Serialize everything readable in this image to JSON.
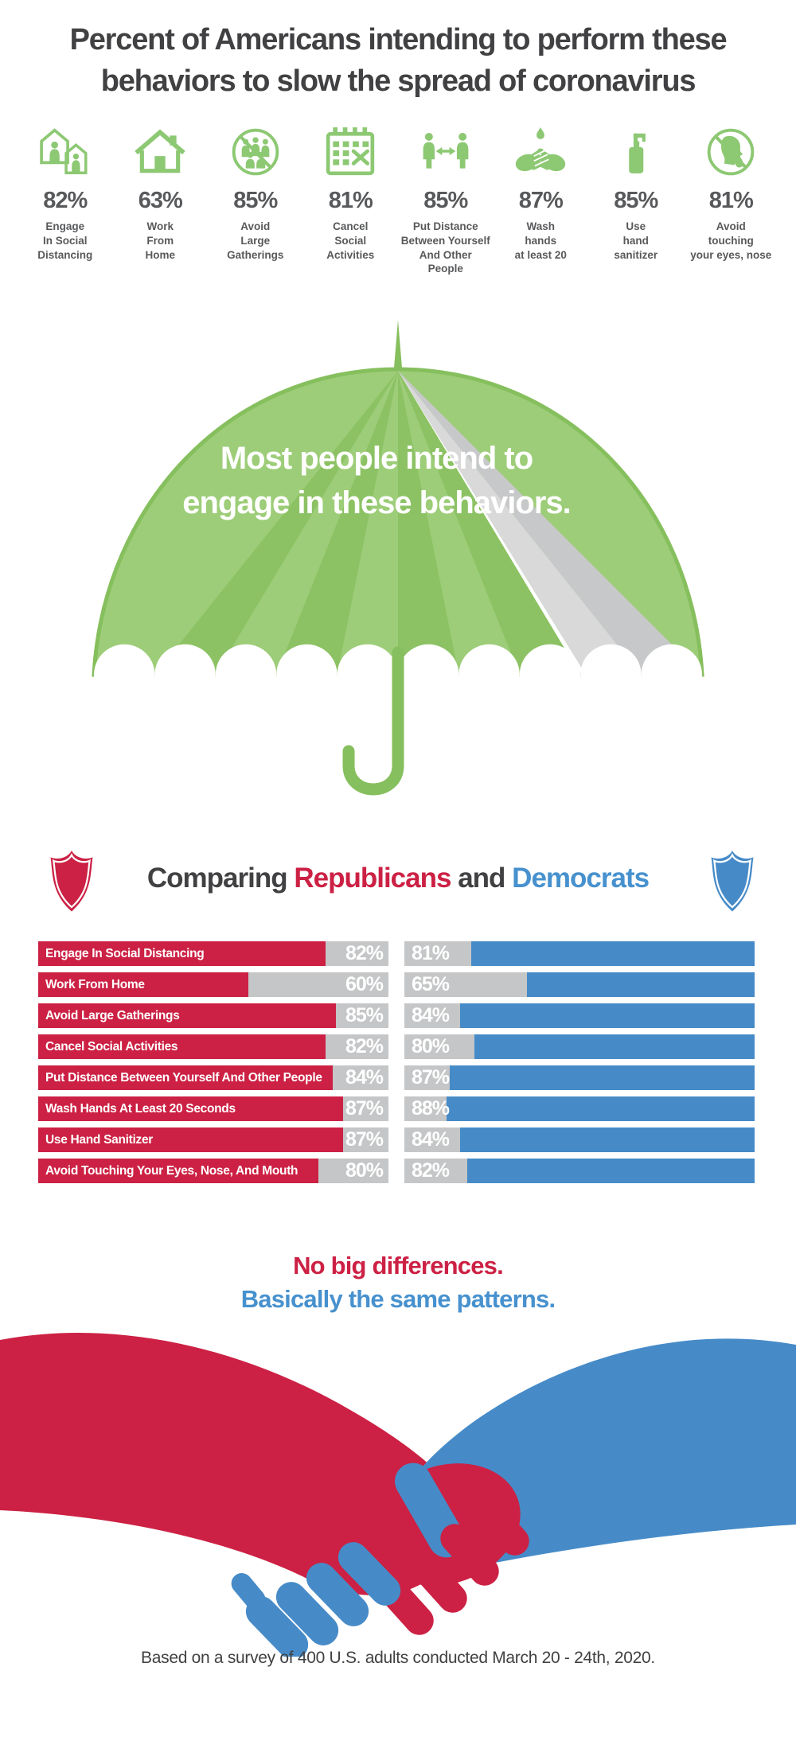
{
  "title": {
    "line1": "Percent of Americans intending to perform these",
    "line2": "behaviors to slow the spread of coronavirus"
  },
  "behaviors": [
    {
      "icon": "social-distancing-houses-icon",
      "symbol": "icon-houses",
      "pct": "82%",
      "label": "Engage\nIn Social\nDistancing"
    },
    {
      "icon": "work-from-home-icon",
      "symbol": "icon-home",
      "pct": "63%",
      "label": "Work\nFrom\nHome"
    },
    {
      "icon": "avoid-gatherings-icon",
      "symbol": "icon-crowd",
      "pct": "85%",
      "label": "Avoid\nLarge\nGatherings"
    },
    {
      "icon": "cancel-activities-icon",
      "symbol": "icon-calendar",
      "pct": "81%",
      "label": "Cancel\nSocial\nActivities"
    },
    {
      "icon": "keep-distance-icon",
      "symbol": "icon-distance",
      "pct": "85%",
      "label": "Put Distance\nBetween Yourself\nAnd Other\nPeople"
    },
    {
      "icon": "wash-hands-icon",
      "symbol": "icon-wash",
      "pct": "87%",
      "label": "Wash\nhands\nat least 20"
    },
    {
      "icon": "hand-sanitizer-icon",
      "symbol": "icon-sanitizer",
      "pct": "85%",
      "label": "Use\nhand\nsanitizer"
    },
    {
      "icon": "avoid-touching-face-icon",
      "symbol": "icon-face",
      "pct": "81%",
      "label": "Avoid\ntouching\nyour eyes, nose"
    }
  ],
  "umbrella": {
    "line1": "Most people intend to",
    "line2": "engage in these behaviors."
  },
  "comparison": {
    "heading": {
      "part1": "Comparing",
      "republicans": "Republicans",
      "and": "and",
      "democrats": "Democrats"
    },
    "rows": [
      {
        "label": "Engage In Social Distancing",
        "rep": 82,
        "dem": 81,
        "rep_pct": "82%",
        "dem_pct": "81%"
      },
      {
        "label": "Work From Home",
        "rep": 60,
        "dem": 65,
        "rep_pct": "60%",
        "dem_pct": "65%"
      },
      {
        "label": "Avoid Large Gatherings",
        "rep": 85,
        "dem": 84,
        "rep_pct": "85%",
        "dem_pct": "84%"
      },
      {
        "label": "Cancel Social Activities",
        "rep": 82,
        "dem": 80,
        "rep_pct": "82%",
        "dem_pct": "80%"
      },
      {
        "label": "Put Distance Between Yourself And Other People",
        "rep": 84,
        "dem": 87,
        "rep_pct": "84%",
        "dem_pct": "87%"
      },
      {
        "label": "Wash Hands At Least 20 Seconds",
        "rep": 87,
        "dem": 88,
        "rep_pct": "87%",
        "dem_pct": "88%"
      },
      {
        "label": "Use Hand Sanitizer",
        "rep": 87,
        "dem": 84,
        "rep_pct": "87%",
        "dem_pct": "84%"
      },
      {
        "label": "Avoid Touching Your Eyes, Nose, And Mouth",
        "rep": 80,
        "dem": 82,
        "rep_pct": "80%",
        "dem_pct": "82%"
      }
    ]
  },
  "conclusion": {
    "line1": "No big differences.",
    "line2": "Basically the same patterns."
  },
  "footer": "Based on a survey of 400 U.S. adults conducted March 20 - 24th, 2020.",
  "colors": {
    "green": "#8DC873",
    "green_panel_light": "#9DCD78",
    "green_panel_dark": "#8CC264",
    "green_rim": "#86BF5D",
    "red": "#CC2144",
    "blue": "#468BC8",
    "blue_text": "#4791CE",
    "gray_track": "#C5C6C7",
    "gray_panel_light": "#D9D9DA",
    "gray_panel_dark": "#C7C8C9",
    "text_dark": "#414042",
    "icon_text": "#58595B"
  },
  "chart_data": [
    {
      "type": "pictogram",
      "title": "Percent of Americans intending to perform these behaviors to slow the spread of coronavirus",
      "categories": [
        "Engage In Social Distancing",
        "Work From Home",
        "Avoid Large Gatherings",
        "Cancel Social Activities",
        "Put Distance Between Yourself And Other People",
        "Wash hands at least 20",
        "Use hand sanitizer",
        "Avoid touching your eyes, nose"
      ],
      "values": [
        82,
        63,
        85,
        81,
        85,
        87,
        85,
        81
      ],
      "unit": "%",
      "annotation": "Most people intend to engage in these behaviors."
    },
    {
      "type": "bar",
      "orientation": "horizontal",
      "title": "Comparing Republicans and Democrats",
      "categories": [
        "Engage In Social Distancing",
        "Work From Home",
        "Avoid Large Gatherings",
        "Cancel Social Activities",
        "Put Distance Between Yourself And Other People",
        "Wash Hands At Least 20 Seconds",
        "Use Hand Sanitizer",
        "Avoid Touching Your Eyes, Nose, And Mouth"
      ],
      "series": [
        {
          "name": "Republicans",
          "color": "#CC2144",
          "values": [
            82,
            60,
            85,
            82,
            84,
            87,
            87,
            80
          ]
        },
        {
          "name": "Democrats",
          "color": "#468BC8",
          "values": [
            81,
            65,
            84,
            80,
            87,
            88,
            84,
            82
          ]
        }
      ],
      "xlim": [
        0,
        100
      ],
      "unit": "%",
      "annotation": "No big differences. Basically the same patterns."
    }
  ]
}
